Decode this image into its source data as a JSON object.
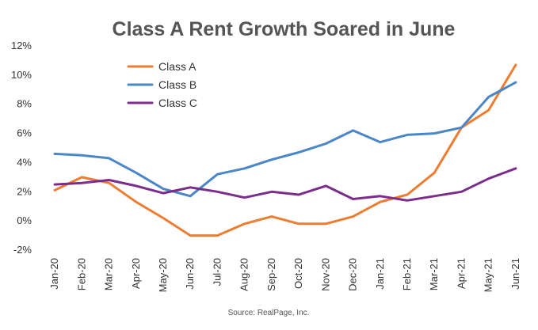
{
  "chart_data": {
    "type": "line",
    "title": "Class A Rent Growth Soared in June",
    "source": "Source: RealPage, Inc.",
    "categories": [
      "Jan-20",
      "Feb-20",
      "Mar-20",
      "Apr-20",
      "May-20",
      "Jun-20",
      "Jul-20",
      "Aug-20",
      "Sep-20",
      "Oct-20",
      "Nov-20",
      "Dec-20",
      "Jan-21",
      "Feb-21",
      "Mar-21",
      "Apr-21",
      "May-21",
      "Jun-21"
    ],
    "ylim": [
      -2,
      12
    ],
    "yticks": [
      -2,
      0,
      2,
      4,
      6,
      8,
      10,
      12
    ],
    "ytick_labels": [
      "-2%",
      "0%",
      "2%",
      "4%",
      "6%",
      "8%",
      "10%",
      "12%"
    ],
    "grid": false,
    "legend_position": "top-left",
    "series": [
      {
        "name": "Class A",
        "color": "#ED7D31",
        "values": [
          2.1,
          3.0,
          2.6,
          1.3,
          0.2,
          -1.0,
          -1.0,
          -0.2,
          0.3,
          -0.2,
          -0.2,
          0.3,
          1.3,
          1.8,
          3.3,
          6.4,
          7.6,
          10.7
        ]
      },
      {
        "name": "Class B",
        "color": "#4A86C8",
        "values": [
          4.6,
          4.5,
          4.3,
          3.3,
          2.2,
          1.7,
          3.2,
          3.6,
          4.2,
          4.7,
          5.3,
          6.2,
          5.4,
          5.9,
          6.0,
          6.4,
          8.5,
          9.5
        ]
      },
      {
        "name": "Class C",
        "color": "#7B2D8B",
        "values": [
          2.5,
          2.6,
          2.8,
          2.4,
          1.9,
          2.3,
          2.0,
          1.6,
          2.0,
          1.8,
          2.4,
          1.5,
          1.7,
          1.4,
          1.7,
          2.0,
          2.9,
          3.6
        ]
      }
    ]
  }
}
